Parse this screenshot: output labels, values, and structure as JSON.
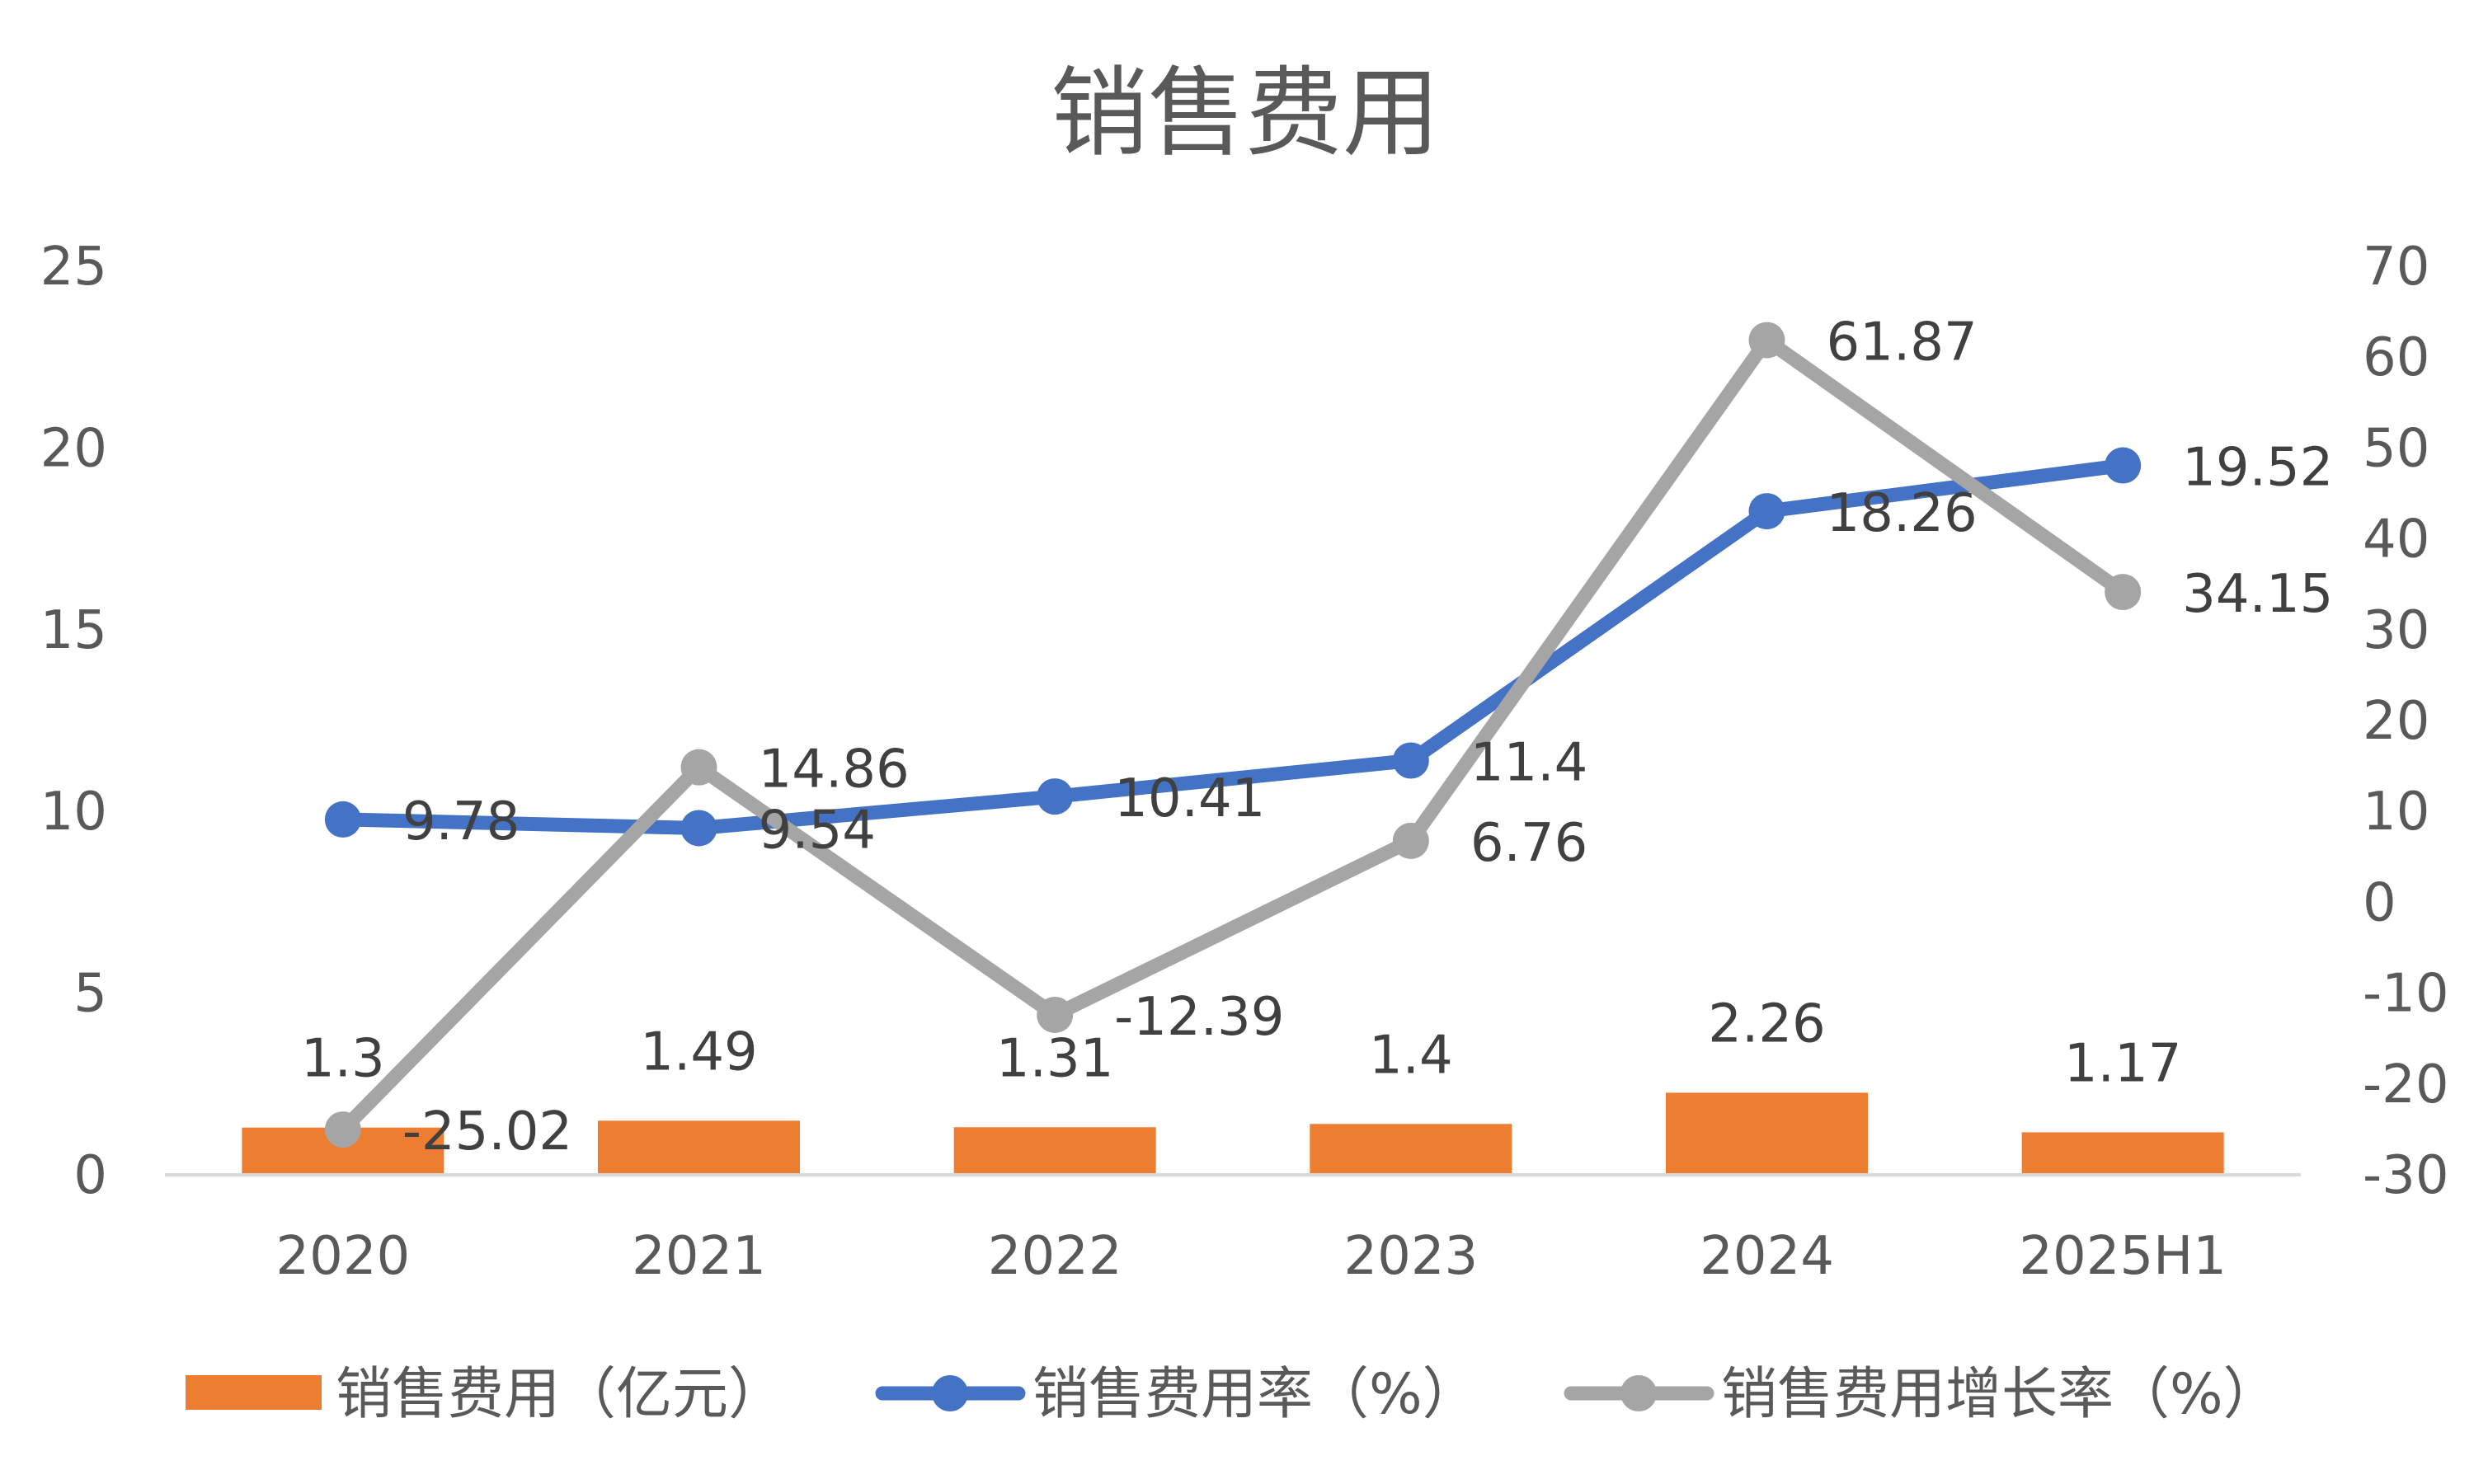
{
  "chart_data": {
    "type": "bar",
    "title": "销售费用",
    "categories": [
      "2020",
      "2021",
      "2022",
      "2023",
      "2024",
      "2025H1"
    ],
    "series": [
      {
        "name": "销售费用（亿元）",
        "kind": "bar",
        "axis": "left",
        "color": "#ED7D31",
        "values": [
          1.3,
          1.49,
          1.31,
          1.4,
          2.26,
          1.17
        ],
        "labels": [
          "1.3",
          "1.49",
          "1.31",
          "1.4",
          "2.26",
          "1.17"
        ]
      },
      {
        "name": "销售费用率（%）",
        "kind": "line",
        "axis": "left",
        "color": "#4472C4",
        "values": [
          9.78,
          9.54,
          10.41,
          11.4,
          18.26,
          19.52
        ],
        "labels": [
          "9.78",
          "9.54",
          "10.41",
          "11.4",
          "18.26",
          "19.52"
        ]
      },
      {
        "name": "销售费用增长率（%）",
        "kind": "line",
        "axis": "right",
        "color": "#A5A5A5",
        "values": [
          -25.02,
          14.86,
          -12.39,
          6.76,
          61.87,
          34.15
        ],
        "labels": [
          "-25.02",
          "14.86",
          "-12.39",
          "6.76",
          "61.87",
          "34.15"
        ]
      }
    ],
    "y_left": {
      "min": 0,
      "max": 25,
      "ticks": [
        "0",
        "5",
        "10",
        "15",
        "20",
        "25"
      ]
    },
    "y_right": {
      "min": -30,
      "max": 70,
      "ticks": [
        "-30",
        "-20",
        "-10",
        "0",
        "10",
        "20",
        "30",
        "40",
        "50",
        "60",
        "70"
      ]
    },
    "grid": false,
    "legend": "bottom"
  }
}
